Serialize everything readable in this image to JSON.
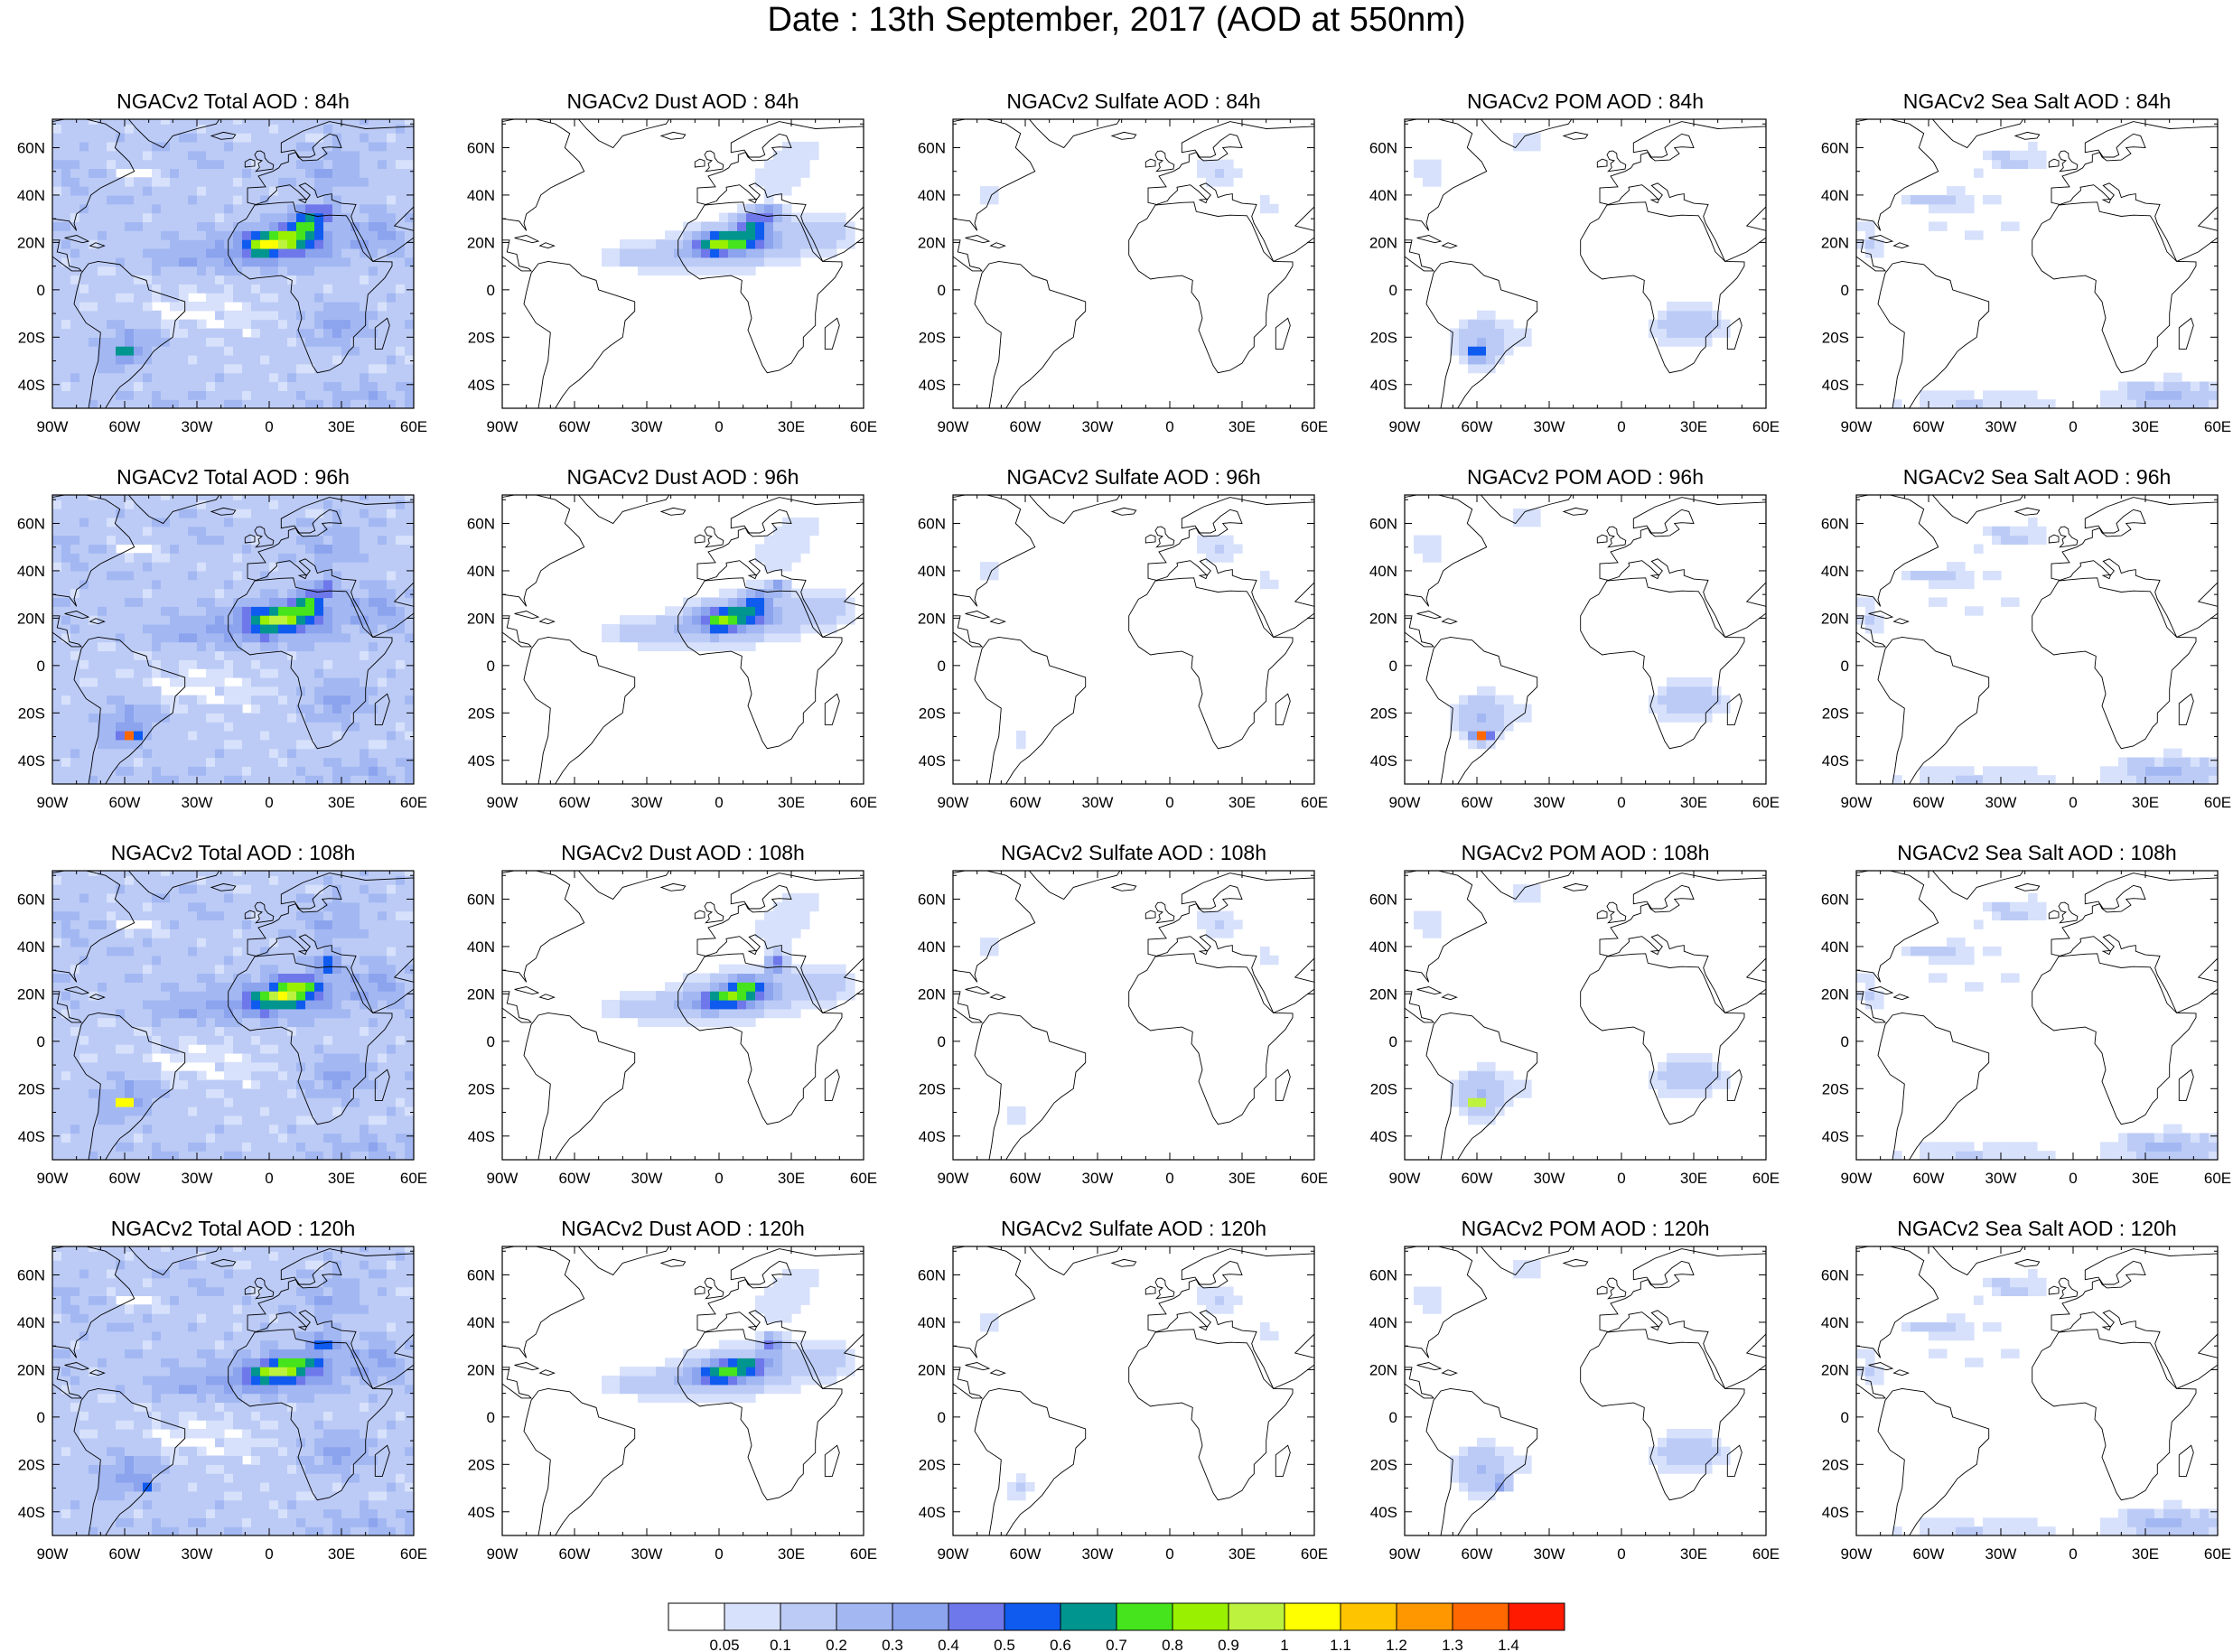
{
  "figure": {
    "title": "Date : 13th September, 2017 (AOD at 550nm)"
  },
  "panels": [
    [
      "NGACv2 Total AOD : 84h",
      "NGACv2 Dust AOD : 84h",
      "NGACv2 Sulfate AOD : 84h",
      "NGACv2 POM AOD : 84h",
      "NGACv2 Sea Salt AOD : 84h"
    ],
    [
      "NGACv2 Total AOD : 96h",
      "NGACv2 Dust AOD : 96h",
      "NGACv2 Sulfate AOD : 96h",
      "NGACv2 POM AOD : 96h",
      "NGACv2 Sea Salt AOD : 96h"
    ],
    [
      "NGACv2 Total AOD : 108h",
      "NGACv2 Dust AOD : 108h",
      "NGACv2 Sulfate AOD : 108h",
      "NGACv2 POM AOD : 108h",
      "NGACv2 Sea Salt AOD : 108h"
    ],
    [
      "NGACv2 Total AOD : 120h",
      "NGACv2 Dust AOD : 120h",
      "NGACv2 Sulfate AOD : 120h",
      "NGACv2 POM AOD : 120h",
      "NGACv2 Sea Salt  AOD : 120h"
    ]
  ],
  "axes": {
    "lon_ticks": [
      "90W",
      "60W",
      "30W",
      "0",
      "30E",
      "60E"
    ],
    "lat_ticks": [
      "60N",
      "40N",
      "20N",
      "0",
      "20S",
      "40S"
    ]
  },
  "colorbar": {
    "labels": [
      "0.05",
      "0.1",
      "0.2",
      "0.3",
      "0.4",
      "0.5",
      "0.6",
      "0.7",
      "0.8",
      "0.9",
      "1",
      "1.1",
      "1.2",
      "1.3",
      "1.4"
    ],
    "colors": [
      "#ffffff",
      "#d7e1fb",
      "#bccbf6",
      "#a3b8f2",
      "#8ca3ee",
      "#6e78ea",
      "#0f5bf0",
      "#00958f",
      "#45e41c",
      "#99f000",
      "#bdf23f",
      "#ffff00",
      "#ffc400",
      "#ff9700",
      "#ff6800",
      "#ff1a00"
    ]
  },
  "colors": {
    "land_outline": "#000000",
    "light_blue": "#bccbf6",
    "mid_blue": "#8ca3ee",
    "dark_blue": "#6e78ea",
    "green": "#45e41c",
    "yellow": "#ffff00",
    "red": "#ff1a00"
  }
}
